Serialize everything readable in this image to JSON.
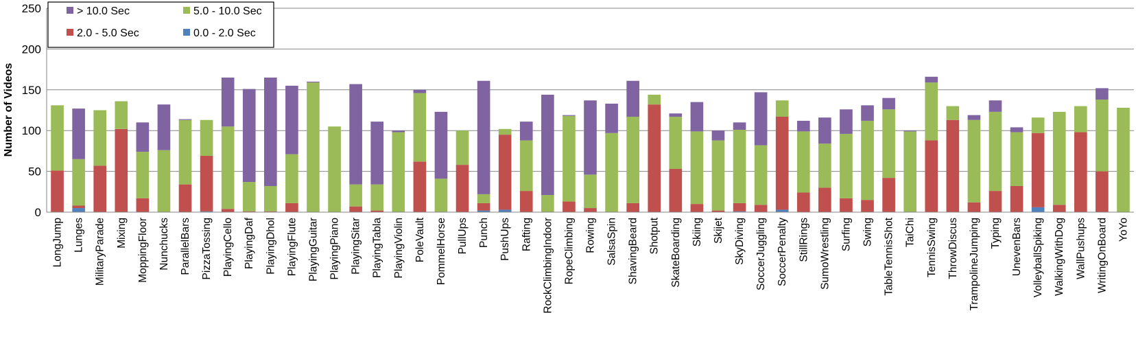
{
  "chart_data": {
    "type": "bar",
    "stacked": true,
    "ylabel": "Number of Videos",
    "xlabel": "",
    "ylim": [
      0,
      250
    ],
    "yticks": [
      0,
      50,
      100,
      150,
      200,
      250
    ],
    "grid": "horizontal",
    "legend_position": "top-left",
    "categories": [
      "LongJump",
      "Lunges",
      "MilitaryParade",
      "Mixing",
      "MoppingFloor",
      "Nunchucks",
      "ParallelBars",
      "PizzaTossing",
      "PlayingCello",
      "PlayingDaf",
      "PlayingDhol",
      "PlayingFlute",
      "PlayingGuitar",
      "PlayingPiano",
      "PlayingSitar",
      "PlayingTabla",
      "PlayingViolin",
      "PoleVault",
      "PommelHorse",
      "PullUps",
      "Punch",
      "PushUps",
      "Rafting",
      "RockClimbingIndoor",
      "RopeClimbing",
      "Rowing",
      "SalsaSpin",
      "ShavingBeard",
      "Shotput",
      "SkateBoarding",
      "Skiing",
      "Skijet",
      "SkyDiving",
      "SoccerJuggling",
      "SoccerPenalty",
      "StillRings",
      "SumoWrestling",
      "Surfing",
      "Swing",
      "TableTennisShot",
      "TaiChi",
      "TennisSwing",
      "ThrowDiscus",
      "TrampolineJumping",
      "Typing",
      "UnevenBars",
      "VolleyballSpiking",
      "WalkingWithDog",
      "WallPushups",
      "WritingOnBoard",
      "YoYo"
    ],
    "series": [
      {
        "name": "0.0 - 2.0 Sec",
        "color": "#4f81bd",
        "values": [
          0,
          5,
          0,
          0,
          0,
          0,
          0,
          1,
          0,
          0,
          0,
          0,
          0,
          0,
          0,
          0,
          0,
          0,
          0,
          0,
          2,
          3,
          0,
          0,
          0,
          0,
          0,
          0,
          0,
          0,
          0,
          0,
          1,
          0,
          3,
          0,
          0,
          0,
          0,
          0,
          0,
          0,
          0,
          0,
          0,
          0,
          6,
          0,
          0,
          0,
          0
        ]
      },
      {
        "name": "2.0 - 5.0 Sec",
        "color": "#c0504d",
        "values": [
          51,
          3,
          57,
          102,
          17,
          0,
          34,
          68,
          4,
          1,
          1,
          11,
          0,
          0,
          7,
          2,
          0,
          62,
          0,
          58,
          9,
          92,
          26,
          0,
          13,
          5,
          0,
          11,
          132,
          53,
          10,
          2,
          10,
          9,
          114,
          24,
          30,
          17,
          15,
          42,
          0,
          88,
          113,
          12,
          26,
          32,
          91,
          9,
          98,
          50,
          0
        ]
      },
      {
        "name": "5.0 - 10.0 Sec",
        "color": "#9bbb59",
        "values": [
          80,
          57,
          68,
          34,
          57,
          76,
          79,
          44,
          101,
          36,
          31,
          60,
          159,
          105,
          27,
          32,
          98,
          84,
          41,
          42,
          11,
          7,
          62,
          21,
          105,
          41,
          97,
          106,
          12,
          64,
          89,
          86,
          90,
          73,
          20,
          75,
          54,
          79,
          97,
          84,
          99,
          71,
          17,
          101,
          97,
          66,
          19,
          114,
          32,
          88,
          128
        ]
      },
      {
        "name": "> 10.0 Sec",
        "color": "#8064a2",
        "values": [
          0,
          62,
          0,
          0,
          36,
          56,
          1,
          0,
          60,
          114,
          133,
          84,
          1,
          0,
          123,
          77,
          2,
          4,
          82,
          0,
          139,
          0,
          23,
          123,
          1,
          91,
          36,
          44,
          0,
          4,
          36,
          12,
          9,
          65,
          0,
          13,
          32,
          30,
          19,
          14,
          1,
          7,
          0,
          6,
          14,
          6,
          0,
          0,
          0,
          14,
          0
        ]
      }
    ],
    "legend": [
      {
        "label": "> 10.0 Sec",
        "color": "#8064a2"
      },
      {
        "label": "5.0 - 10.0 Sec",
        "color": "#9bbb59"
      },
      {
        "label": "2.0 - 5.0 Sec",
        "color": "#c0504d"
      },
      {
        "label": "0.0 - 2.0 Sec",
        "color": "#4f81bd"
      }
    ]
  }
}
